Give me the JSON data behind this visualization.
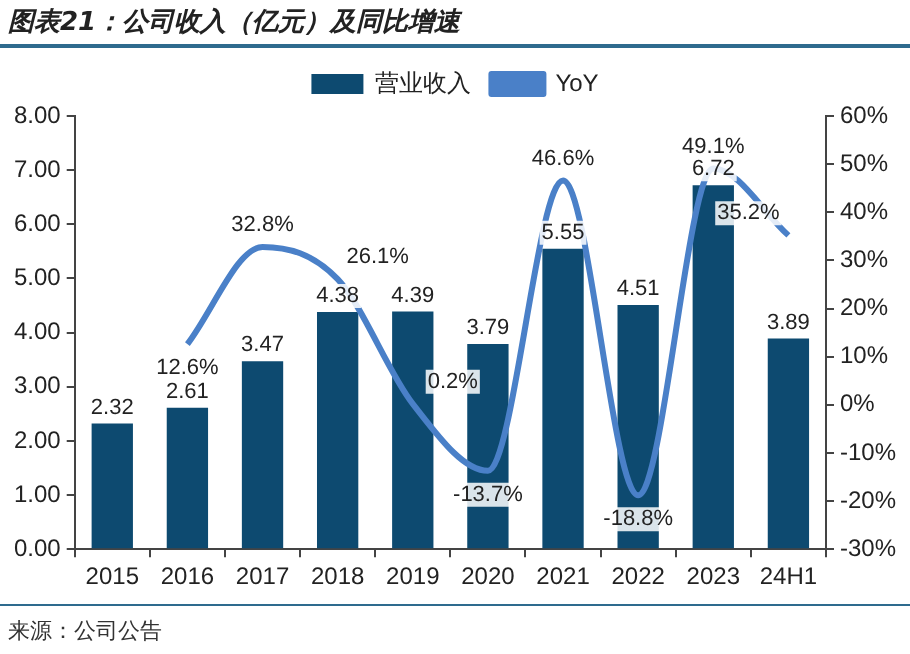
{
  "chart_data": {
    "type": "bar",
    "title": "图表21：公司收入（亿元）及同比增速",
    "categories": [
      "2015",
      "2016",
      "2017",
      "2018",
      "2019",
      "2020",
      "2021",
      "2022",
      "2023",
      "24H1"
    ],
    "series": [
      {
        "name": "营业收入",
        "color": "#0d4a70",
        "values": [
          2.32,
          2.61,
          3.47,
          4.38,
          4.39,
          3.79,
          5.55,
          4.51,
          6.72,
          3.89
        ]
      },
      {
        "name": "YoY",
        "type": "line",
        "axis": "y2",
        "color": "#4a80c8",
        "values": [
          null,
          12.6,
          32.8,
          26.1,
          0.2,
          -13.7,
          46.6,
          -18.8,
          49.1,
          35.2
        ],
        "value_labels": [
          null,
          "12.6%",
          "32.8%",
          "26.1%",
          "0.2%",
          "-13.7%",
          "46.6%",
          "-18.8%",
          "49.1%",
          "35.2%"
        ]
      }
    ],
    "data_labels": true,
    "ylim": [
      0,
      8
    ],
    "yticks": [
      {
        "value": 0,
        "label": "0.00"
      },
      {
        "value": 1,
        "label": "1.00"
      },
      {
        "value": 2,
        "label": "2.00"
      },
      {
        "value": 3,
        "label": "3.00"
      },
      {
        "value": 4,
        "label": "4.00"
      },
      {
        "value": 5,
        "label": "5.00"
      },
      {
        "value": 6,
        "label": "6.00"
      },
      {
        "value": 7,
        "label": "7.00"
      },
      {
        "value": 8,
        "label": "8.00"
      }
    ],
    "y2lim": [
      -30,
      60
    ],
    "y2ticks": [
      {
        "value": -30,
        "label": "-30%"
      },
      {
        "value": -20,
        "label": "-20%"
      },
      {
        "value": -10,
        "label": "-10%"
      },
      {
        "value": 0,
        "label": "0%"
      },
      {
        "value": 10,
        "label": "10%"
      },
      {
        "value": 20,
        "label": "20%"
      },
      {
        "value": 30,
        "label": "30%"
      },
      {
        "value": 40,
        "label": "40%"
      },
      {
        "value": 50,
        "label": "50%"
      },
      {
        "value": 60,
        "label": "60%"
      }
    ],
    "legend": "top",
    "grid": false,
    "marker": "none",
    "annotations": [
      "来源：公司公告"
    ]
  }
}
